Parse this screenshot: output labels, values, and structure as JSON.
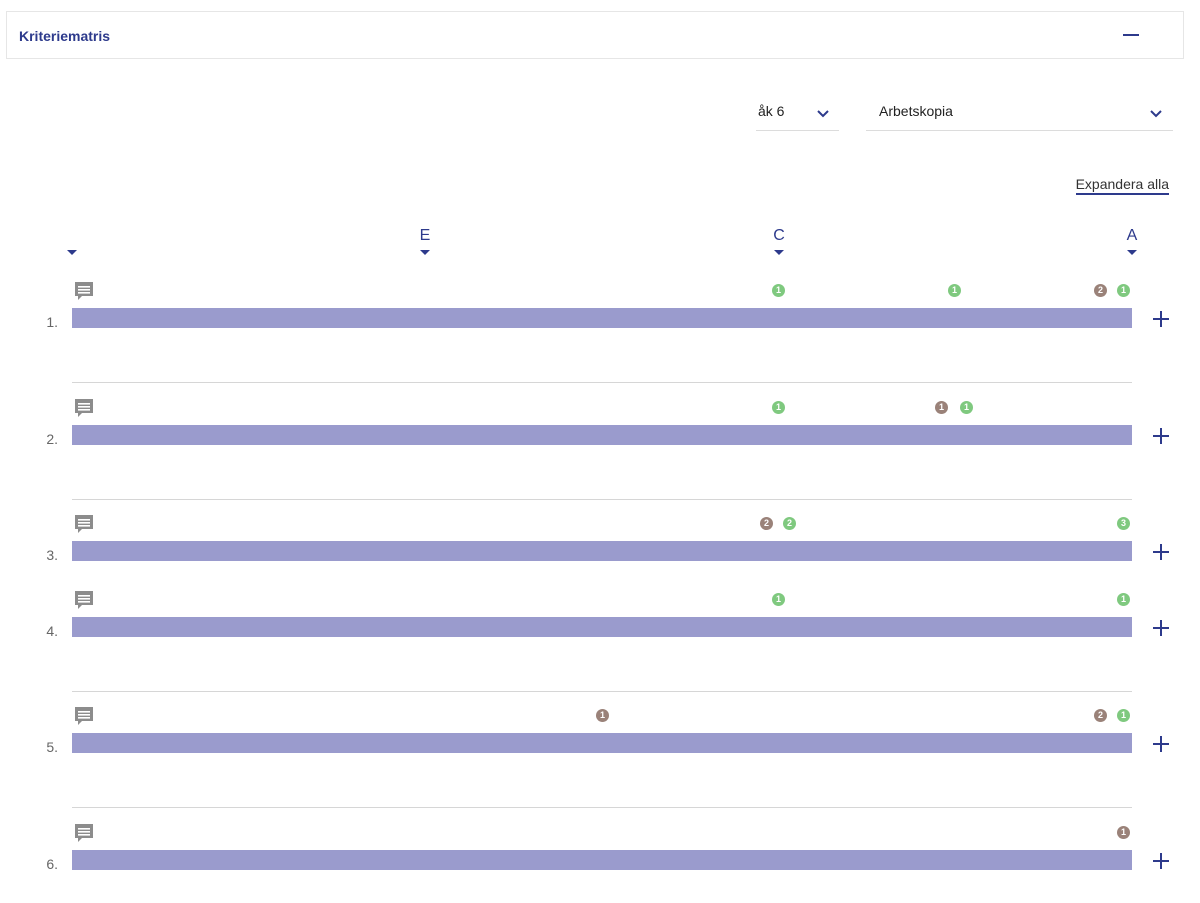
{
  "panel": {
    "title": "Kriteriematris"
  },
  "filters": {
    "grade": "åk 6",
    "copy": "Arbetskopia"
  },
  "expand_all": "Expandera alla",
  "grade_headers": [
    "",
    "E",
    "C",
    "A"
  ],
  "colors": {
    "accent": "#2d3a8c",
    "bar": "#9a9bcd",
    "badge_green": "#7fc97f",
    "badge_brown": "#9a8279"
  },
  "rows": [
    {
      "number": "1.",
      "badges": [
        {
          "level": "C",
          "n": "1",
          "color": "green"
        },
        {
          "level": "C-A",
          "n": "1",
          "color": "green"
        },
        {
          "level": "A",
          "n": "2",
          "color": "brown"
        },
        {
          "level": "A",
          "n": "1",
          "color": "green"
        }
      ]
    },
    {
      "number": "2.",
      "badges": [
        {
          "level": "C",
          "n": "1",
          "color": "green"
        },
        {
          "level": "C-A",
          "n": "1",
          "color": "brown"
        },
        {
          "level": "C-A",
          "n": "1",
          "color": "green"
        }
      ]
    },
    {
      "number": "3.",
      "badges": [
        {
          "level": "C",
          "n": "2",
          "color": "brown"
        },
        {
          "level": "C",
          "n": "2",
          "color": "green"
        },
        {
          "level": "A",
          "n": "3",
          "color": "green"
        }
      ]
    },
    {
      "number": "4.",
      "badges": [
        {
          "level": "C",
          "n": "1",
          "color": "green"
        },
        {
          "level": "A",
          "n": "1",
          "color": "green"
        }
      ]
    },
    {
      "number": "5.",
      "badges": [
        {
          "level": "E-C",
          "n": "1",
          "color": "brown"
        },
        {
          "level": "A",
          "n": "2",
          "color": "brown"
        },
        {
          "level": "A",
          "n": "1",
          "color": "green"
        }
      ]
    },
    {
      "number": "6.",
      "badges": [
        {
          "level": "A",
          "n": "1",
          "color": "brown"
        }
      ]
    }
  ]
}
